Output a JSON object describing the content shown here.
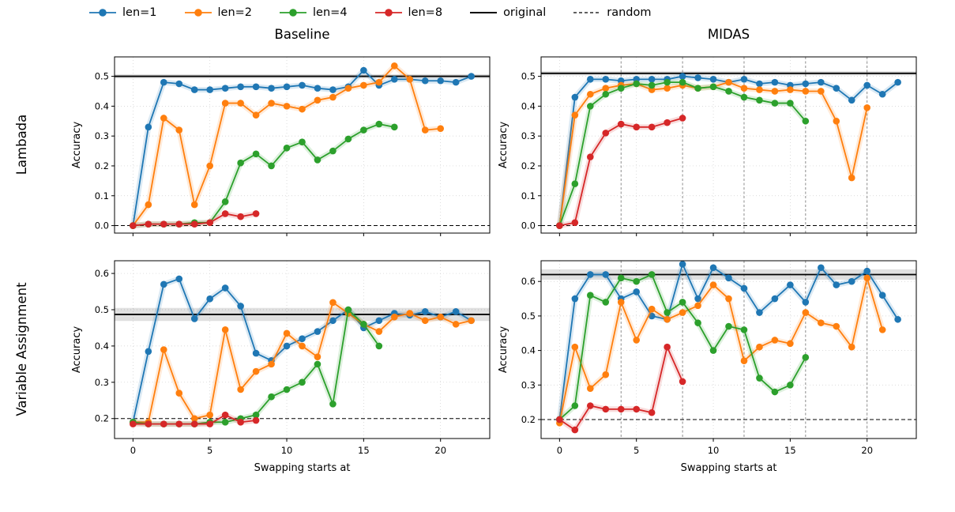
{
  "layout": {
    "col_titles": [
      "Baseline",
      "MIDAS"
    ],
    "row_labels": [
      "Lambada",
      "Variable Assignment"
    ],
    "xlabel": "Swapping starts at",
    "ylabel": "Accuracy"
  },
  "legend": {
    "items": [
      {
        "label": "len=1",
        "color": "#1f77b4",
        "style": "marker"
      },
      {
        "label": "len=2",
        "color": "#ff7f0e",
        "style": "marker"
      },
      {
        "label": "len=4",
        "color": "#2ca02c",
        "style": "marker"
      },
      {
        "label": "len=8",
        "color": "#d62728",
        "style": "marker"
      },
      {
        "label": "original",
        "color": "#000000",
        "style": "solid"
      },
      {
        "label": "random",
        "color": "#000000",
        "style": "dashed"
      }
    ]
  },
  "chart_data": [
    {
      "type": "line",
      "title": "Lambada - Baseline",
      "ylabel": "Accuracy",
      "xlabel": "",
      "show_xticklabels": false,
      "xlim": [
        -1.2,
        23.2
      ],
      "ylim": [
        -0.025,
        0.565
      ],
      "xticks": [
        0,
        5,
        10,
        15,
        20
      ],
      "yticks": [
        0.0,
        0.1,
        0.2,
        0.3,
        0.4,
        0.5
      ],
      "vlines": [],
      "original": {
        "value": 0.5,
        "band": 0.007
      },
      "random": 0.0,
      "series": [
        {
          "name": "len=1",
          "color": "#1f77b4",
          "y": [
            0.0,
            0.33,
            0.48,
            0.475,
            0.455,
            0.455,
            0.46,
            0.465,
            0.465,
            0.46,
            0.465,
            0.47,
            0.46,
            0.455,
            0.465,
            0.52,
            0.47,
            0.49,
            0.49,
            0.485,
            0.485,
            0.48,
            0.5
          ]
        },
        {
          "name": "len=2",
          "color": "#ff7f0e",
          "y": [
            0.0,
            0.07,
            0.36,
            0.32,
            0.07,
            0.2,
            0.41,
            0.41,
            0.37,
            0.41,
            0.4,
            0.39,
            0.42,
            0.43,
            0.46,
            0.47,
            0.48,
            0.535,
            0.49,
            0.32,
            0.325
          ]
        },
        {
          "name": "len=4",
          "color": "#2ca02c",
          "y": [
            0.0,
            0.005,
            0.005,
            0.005,
            0.01,
            0.01,
            0.08,
            0.21,
            0.24,
            0.2,
            0.26,
            0.28,
            0.22,
            0.25,
            0.29,
            0.32,
            0.34,
            0.33
          ]
        },
        {
          "name": "len=8",
          "color": "#d62728",
          "y": [
            0.0,
            0.005,
            0.005,
            0.005,
            0.005,
            0.01,
            0.04,
            0.03,
            0.04
          ]
        }
      ]
    },
    {
      "type": "line",
      "title": "Lambada - MIDAS",
      "ylabel": "Accuracy",
      "xlabel": "",
      "show_xticklabels": false,
      "xlim": [
        -1.2,
        23.2
      ],
      "ylim": [
        -0.025,
        0.565
      ],
      "xticks": [
        0,
        5,
        10,
        15,
        20
      ],
      "yticks": [
        0.0,
        0.1,
        0.2,
        0.3,
        0.4,
        0.5
      ],
      "vlines": [
        4,
        8,
        12,
        16,
        20
      ],
      "original": {
        "value": 0.51,
        "band": 0.007
      },
      "random": 0.0,
      "series": [
        {
          "name": "len=1",
          "color": "#1f77b4",
          "y": [
            0.0,
            0.43,
            0.49,
            0.49,
            0.485,
            0.49,
            0.49,
            0.49,
            0.5,
            0.495,
            0.49,
            0.48,
            0.49,
            0.475,
            0.48,
            0.47,
            0.475,
            0.48,
            0.46,
            0.42,
            0.47,
            0.44,
            0.48
          ]
        },
        {
          "name": "len=2",
          "color": "#ff7f0e",
          "y": [
            0.0,
            0.37,
            0.44,
            0.46,
            0.47,
            0.475,
            0.455,
            0.46,
            0.47,
            0.46,
            0.465,
            0.48,
            0.46,
            0.455,
            0.45,
            0.455,
            0.45,
            0.45,
            0.35,
            0.16,
            0.395
          ]
        },
        {
          "name": "len=4",
          "color": "#2ca02c",
          "y": [
            0.0,
            0.14,
            0.4,
            0.44,
            0.46,
            0.475,
            0.47,
            0.48,
            0.48,
            0.46,
            0.465,
            0.45,
            0.43,
            0.42,
            0.41,
            0.41,
            0.35
          ]
        },
        {
          "name": "len=8",
          "color": "#d62728",
          "y": [
            0.0,
            0.01,
            0.23,
            0.31,
            0.34,
            0.33,
            0.33,
            0.345,
            0.36
          ]
        }
      ]
    },
    {
      "type": "line",
      "title": "Variable Assignment - Baseline",
      "ylabel": "Accuracy",
      "xlabel": "Swapping starts at",
      "show_xticklabels": true,
      "xlim": [
        -1.2,
        23.2
      ],
      "ylim": [
        0.145,
        0.635
      ],
      "xticks": [
        0,
        5,
        10,
        15,
        20
      ],
      "yticks": [
        0.2,
        0.3,
        0.4,
        0.5,
        0.6
      ],
      "vlines": [],
      "original": {
        "value": 0.487,
        "band": 0.018
      },
      "random": 0.2,
      "series": [
        {
          "name": "len=1",
          "color": "#1f77b4",
          "y": [
            0.19,
            0.385,
            0.57,
            0.585,
            0.475,
            0.53,
            0.56,
            0.51,
            0.38,
            0.36,
            0.4,
            0.42,
            0.44,
            0.47,
            0.5,
            0.45,
            0.47,
            0.49,
            0.485,
            0.495,
            0.48,
            0.495,
            0.47
          ]
        },
        {
          "name": "len=2",
          "color": "#ff7f0e",
          "y": [
            0.19,
            0.19,
            0.39,
            0.27,
            0.2,
            0.21,
            0.445,
            0.28,
            0.33,
            0.35,
            0.435,
            0.4,
            0.37,
            0.52,
            0.49,
            0.46,
            0.44,
            0.48,
            0.49,
            0.47,
            0.48,
            0.46,
            0.47
          ]
        },
        {
          "name": "len=4",
          "color": "#2ca02c",
          "y": [
            0.19,
            0.185,
            0.185,
            0.185,
            0.185,
            0.19,
            0.19,
            0.2,
            0.21,
            0.26,
            0.28,
            0.3,
            0.35,
            0.24,
            0.5,
            0.46,
            0.4
          ]
        },
        {
          "name": "len=8",
          "color": "#d62728",
          "y": [
            0.185,
            0.185,
            0.185,
            0.185,
            0.185,
            0.185,
            0.21,
            0.19,
            0.195
          ]
        }
      ]
    },
    {
      "type": "line",
      "title": "Variable Assignment - MIDAS",
      "ylabel": "Accuracy",
      "xlabel": "Swapping starts at",
      "show_xticklabels": true,
      "xlim": [
        -1.2,
        23.2
      ],
      "ylim": [
        0.145,
        0.66
      ],
      "xticks": [
        0,
        5,
        10,
        15,
        20
      ],
      "yticks": [
        0.2,
        0.3,
        0.4,
        0.5,
        0.6
      ],
      "vlines": [
        4,
        8,
        12,
        16,
        20
      ],
      "original": {
        "value": 0.62,
        "band": 0.015
      },
      "random": 0.2,
      "series": [
        {
          "name": "len=1",
          "color": "#1f77b4",
          "y": [
            0.2,
            0.55,
            0.62,
            0.62,
            0.55,
            0.57,
            0.5,
            0.49,
            0.65,
            0.55,
            0.64,
            0.61,
            0.58,
            0.51,
            0.55,
            0.59,
            0.54,
            0.64,
            0.59,
            0.6,
            0.63,
            0.56,
            0.49
          ]
        },
        {
          "name": "len=2",
          "color": "#ff7f0e",
          "y": [
            0.19,
            0.41,
            0.29,
            0.33,
            0.54,
            0.43,
            0.52,
            0.49,
            0.51,
            0.53,
            0.59,
            0.55,
            0.37,
            0.41,
            0.43,
            0.42,
            0.51,
            0.48,
            0.47,
            0.41,
            0.61,
            0.46
          ]
        },
        {
          "name": "len=4",
          "color": "#2ca02c",
          "y": [
            0.2,
            0.24,
            0.56,
            0.54,
            0.61,
            0.6,
            0.62,
            0.51,
            0.54,
            0.48,
            0.4,
            0.47,
            0.46,
            0.32,
            0.28,
            0.3,
            0.38
          ]
        },
        {
          "name": "len=8",
          "color": "#d62728",
          "y": [
            0.2,
            0.17,
            0.24,
            0.23,
            0.23,
            0.23,
            0.22,
            0.41,
            0.31
          ]
        }
      ]
    }
  ]
}
